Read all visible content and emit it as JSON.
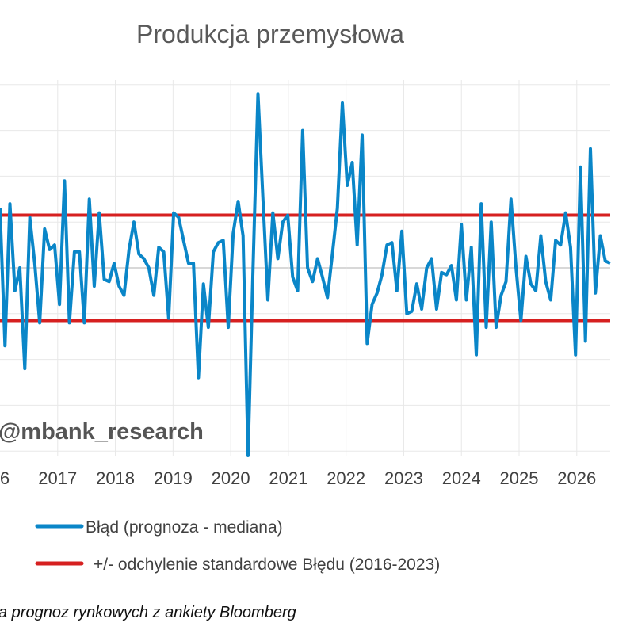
{
  "chart_data": {
    "type": "line",
    "title": "Produkcja przemysłowa",
    "xlabel": "",
    "ylabel": "",
    "x_tick_labels": [
      "6",
      "2017",
      "2018",
      "2019",
      "2020",
      "2021",
      "2022",
      "2023",
      "2024",
      "2025",
      "2026"
    ],
    "watermark": "@mbank_research",
    "source_note": "a prognoz rynkowych z ankiety Bloomberg",
    "grid": true,
    "legend_position": "bottom",
    "x_start_year": 2016.0,
    "x_end_year": 2026.58,
    "ylim": [
      -4.1,
      4.1
    ],
    "std_dev": 1.15,
    "colors": {
      "series": "#0a86c8",
      "band": "#d62020",
      "grid": "#e8e8e8",
      "zero": "#cccccc"
    },
    "series": [
      {
        "name": "Błąd (prognoza - mediana)",
        "values": [
          1.3,
          -1.7,
          1.4,
          -0.5,
          0.0,
          -2.2,
          1.1,
          0.1,
          -1.2,
          0.85,
          0.4,
          0.5,
          -0.8,
          1.9,
          -1.2,
          0.35,
          0.35,
          -1.2,
          1.5,
          -0.4,
          1.2,
          -0.25,
          -0.3,
          0.1,
          -0.4,
          -0.6,
          0.4,
          1.0,
          0.3,
          0.2,
          0.0,
          -0.6,
          0.45,
          0.35,
          -1.1,
          1.2,
          1.1,
          0.6,
          0.1,
          0.1,
          -2.4,
          -0.35,
          -1.3,
          0.35,
          0.55,
          0.6,
          -1.3,
          0.75,
          1.45,
          0.7,
          -5.0,
          0.0,
          3.8,
          1.5,
          -0.7,
          1.2,
          0.2,
          1.0,
          1.15,
          -0.2,
          -0.5,
          3.0,
          0.0,
          -0.3,
          0.2,
          -0.2,
          -0.65,
          0.3,
          1.3,
          3.6,
          1.8,
          2.3,
          0.5,
          2.9,
          -1.65,
          -0.8,
          -0.55,
          -0.15,
          0.5,
          0.55,
          -0.5,
          0.8,
          -1.0,
          -0.95,
          -0.35,
          -0.9,
          0.0,
          0.2,
          -0.9,
          -0.1,
          -0.15,
          0.05,
          -0.7,
          0.95,
          -0.7,
          0.45,
          -1.9,
          1.4,
          -1.3,
          1.0,
          -1.3,
          -0.6,
          -0.3,
          1.5,
          0.0,
          -1.15,
          0.25,
          -0.35,
          -0.5,
          0.7,
          -0.3,
          -0.7,
          0.6,
          0.5,
          1.2,
          0.45,
          -1.9,
          2.2,
          -1.6,
          2.6,
          -0.55,
          0.7,
          0.15,
          0.1
        ]
      },
      {
        "name": "+/- odchylenie standardowe Błędu (2016-2023)",
        "values": []
      }
    ]
  }
}
